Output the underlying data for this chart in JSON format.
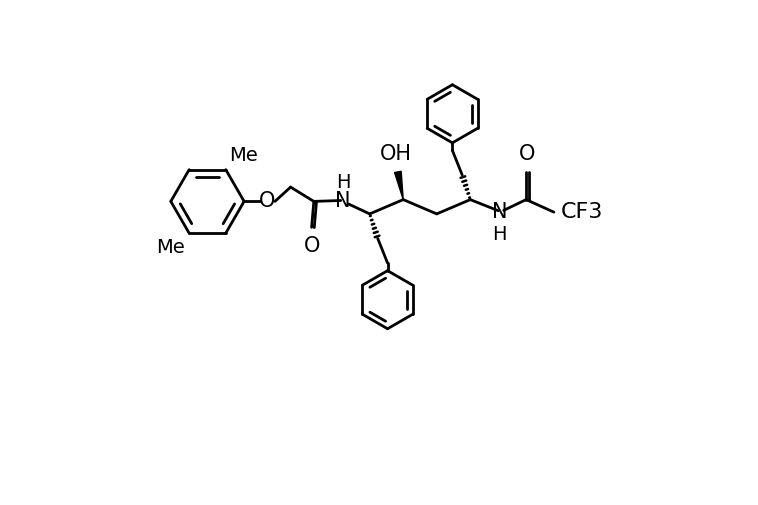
{
  "background": "#ffffff",
  "line_color": "#000000",
  "line_width": 2.0,
  "font_size": 14,
  "fig_width": 7.58,
  "fig_height": 5.05,
  "dpi": 100,
  "xlim": [
    -0.3,
    10.5
  ],
  "ylim": [
    -2.2,
    6.5
  ]
}
